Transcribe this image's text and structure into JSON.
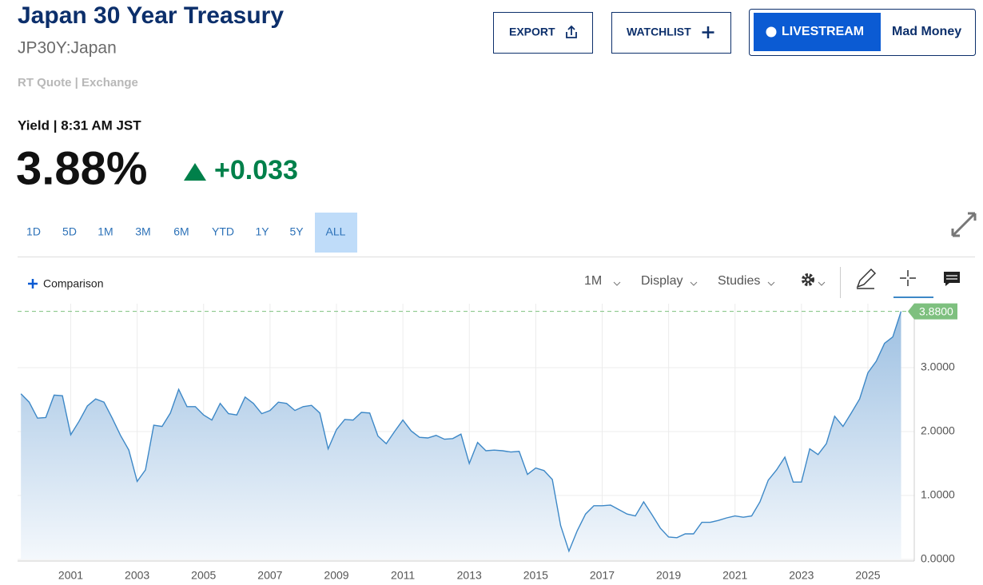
{
  "header": {
    "title": "Japan 30 Year Treasury",
    "symbol": "JP30Y:Japan",
    "quote_source": "RT Quote | Exchange"
  },
  "quote": {
    "label": "Yield | 8:31 AM JST",
    "last": "3.88%",
    "change": "+0.033"
  },
  "buttons": [
    "EXPORT",
    "WATCHLIST",
    "LIVESTREAM",
    "Mad Money"
  ],
  "ranges": [
    "1D",
    "5D",
    "1M",
    "3M",
    "6M",
    "YTD",
    "1Y",
    "5Y",
    "ALL"
  ],
  "toolbar": {
    "comparison": "Comparison",
    "interval": "1M",
    "display": "Display",
    "studies": "Studies"
  },
  "chart_data": {
    "type": "area",
    "color": "#3d88c7",
    "x": [
      1999.5,
      1999.75,
      2000,
      2000.25,
      2000.5,
      2000.75,
      2001,
      2001.25,
      2001.5,
      2001.75,
      2002,
      2002.25,
      2002.5,
      2002.75,
      2003,
      2003.25,
      2003.5,
      2003.75,
      2004,
      2004.25,
      2004.5,
      2004.75,
      2005,
      2005.25,
      2005.5,
      2005.75,
      2006,
      2006.25,
      2006.5,
      2006.75,
      2007,
      2007.25,
      2007.5,
      2007.75,
      2008,
      2008.25,
      2008.5,
      2008.75,
      2009,
      2009.25,
      2009.5,
      2009.75,
      2010,
      2010.25,
      2010.5,
      2010.75,
      2011,
      2011.25,
      2011.5,
      2011.75,
      2012,
      2012.25,
      2012.5,
      2012.75,
      2013,
      2013.25,
      2013.5,
      2013.75,
      2014,
      2014.25,
      2014.5,
      2014.75,
      2015,
      2015.25,
      2015.5,
      2015.75,
      2016,
      2016.25,
      2016.5,
      2016.75,
      2017,
      2017.25,
      2017.5,
      2017.75,
      2018,
      2018.25,
      2018.5,
      2018.75,
      2019,
      2019.25,
      2019.5,
      2019.75,
      2020,
      2020.25,
      2020.5,
      2020.75,
      2021,
      2021.25,
      2021.5,
      2021.75,
      2022,
      2022.25,
      2022.5,
      2022.75,
      2023,
      2023.25,
      2023.5,
      2023.75,
      2024,
      2024.25,
      2024.5,
      2024.75,
      2025,
      2025.25,
      2025.5,
      2025.75,
      2026
    ],
    "values": [
      2.59,
      2.46,
      2.21,
      2.22,
      2.57,
      2.56,
      1.95,
      2.16,
      2.4,
      2.51,
      2.46,
      2.21,
      1.94,
      1.71,
      1.22,
      1.4,
      2.1,
      2.08,
      2.29,
      2.66,
      2.39,
      2.39,
      2.26,
      2.18,
      2.44,
      2.28,
      2.26,
      2.54,
      2.44,
      2.28,
      2.33,
      2.46,
      2.44,
      2.33,
      2.39,
      2.41,
      2.29,
      1.73,
      2.03,
      2.19,
      2.18,
      2.3,
      2.29,
      1.93,
      1.81,
      2.0,
      2.18,
      2.01,
      1.91,
      1.9,
      1.94,
      1.88,
      1.89,
      1.96,
      1.5,
      1.83,
      1.7,
      1.71,
      1.7,
      1.68,
      1.69,
      1.33,
      1.43,
      1.39,
      1.25,
      0.53,
      0.13,
      0.45,
      0.71,
      0.84,
      0.84,
      0.85,
      0.78,
      0.71,
      0.68,
      0.9,
      0.7,
      0.49,
      0.35,
      0.34,
      0.4,
      0.4,
      0.58,
      0.58,
      0.61,
      0.65,
      0.68,
      0.66,
      0.68,
      0.9,
      1.24,
      1.4,
      1.6,
      1.21,
      1.21,
      1.73,
      1.64,
      1.81,
      2.24,
      2.08,
      2.29,
      2.51,
      2.92,
      3.1,
      3.38,
      3.48,
      3.88
    ],
    "xlim": [
      1999.4,
      2026.3
    ],
    "xticks": [
      2001,
      2003,
      2005,
      2007,
      2009,
      2011,
      2013,
      2015,
      2017,
      2019,
      2021,
      2023,
      2025
    ],
    "ylim": [
      0,
      4
    ],
    "yticks": [
      {
        "value": 0,
        "label": "0.0000"
      },
      {
        "value": 1,
        "label": "1.0000"
      },
      {
        "value": 2,
        "label": "2.0000"
      },
      {
        "value": 3,
        "label": "3.0000"
      }
    ],
    "last_value": {
      "value": 3.88,
      "label": "3.8800"
    },
    "grid": true
  }
}
